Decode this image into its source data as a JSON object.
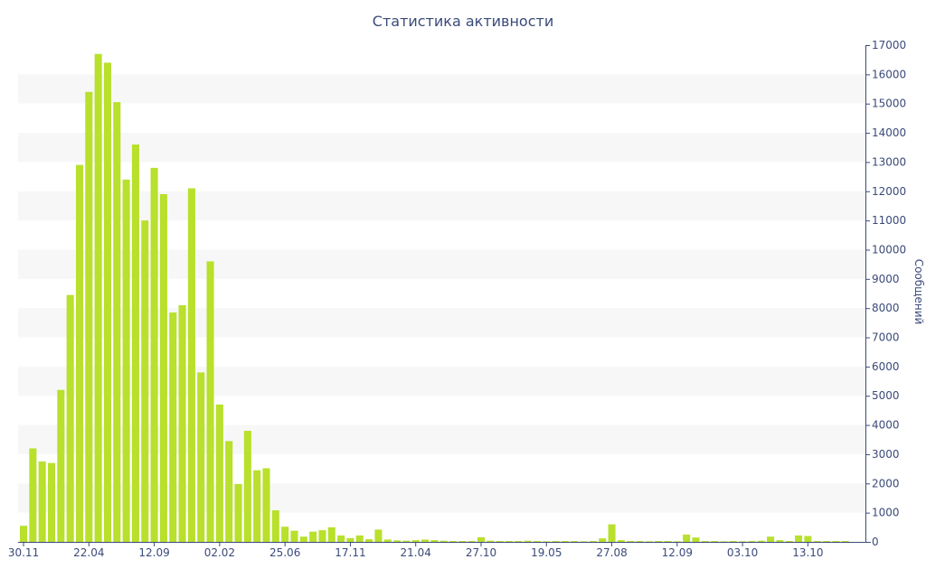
{
  "colors": {
    "bar": "#b8e02c",
    "band": "#f7f7f7",
    "axis": "#3b4a7a",
    "text": "#3b4a7a"
  },
  "chart_data": {
    "type": "bar",
    "title": "Статистика активности",
    "ylabel": "Сообщений",
    "xlabel": "",
    "ylim": [
      0,
      17000
    ],
    "y_ticks": [
      0,
      1000,
      2000,
      3000,
      4000,
      5000,
      6000,
      7000,
      8000,
      9000,
      10000,
      11000,
      12000,
      13000,
      14000,
      15000,
      16000,
      17000
    ],
    "y_axis_position": "right",
    "x_tick_labels": [
      "30.11",
      "22.04",
      "12.09",
      "02.02",
      "25.06",
      "17.11",
      "21.04",
      "27.10",
      "19.05",
      "27.08",
      "12.09",
      "03.10",
      "13.10"
    ],
    "x_tick_bar_index": [
      0,
      7,
      14,
      21,
      28,
      35,
      42,
      49,
      56,
      63,
      70,
      77,
      84
    ],
    "values": [
      550,
      3200,
      2750,
      2700,
      5200,
      8450,
      12900,
      15400,
      16700,
      16400,
      15050,
      12400,
      13600,
      11000,
      12800,
      11900,
      7850,
      8100,
      12100,
      5800,
      9600,
      4700,
      3450,
      1980,
      3800,
      2450,
      2520,
      1080,
      520,
      380,
      180,
      350,
      400,
      500,
      220,
      130,
      220,
      90,
      420,
      80,
      50,
      40,
      60,
      80,
      60,
      40,
      30,
      30,
      30,
      160,
      40,
      30,
      30,
      30,
      40,
      30,
      20,
      30,
      30,
      30,
      20,
      30,
      120,
      600,
      60,
      30,
      30,
      20,
      30,
      30,
      20,
      250,
      150,
      30,
      30,
      20,
      30,
      20,
      30,
      40,
      180,
      60,
      30,
      220,
      200,
      30,
      30,
      30,
      30
    ]
  }
}
